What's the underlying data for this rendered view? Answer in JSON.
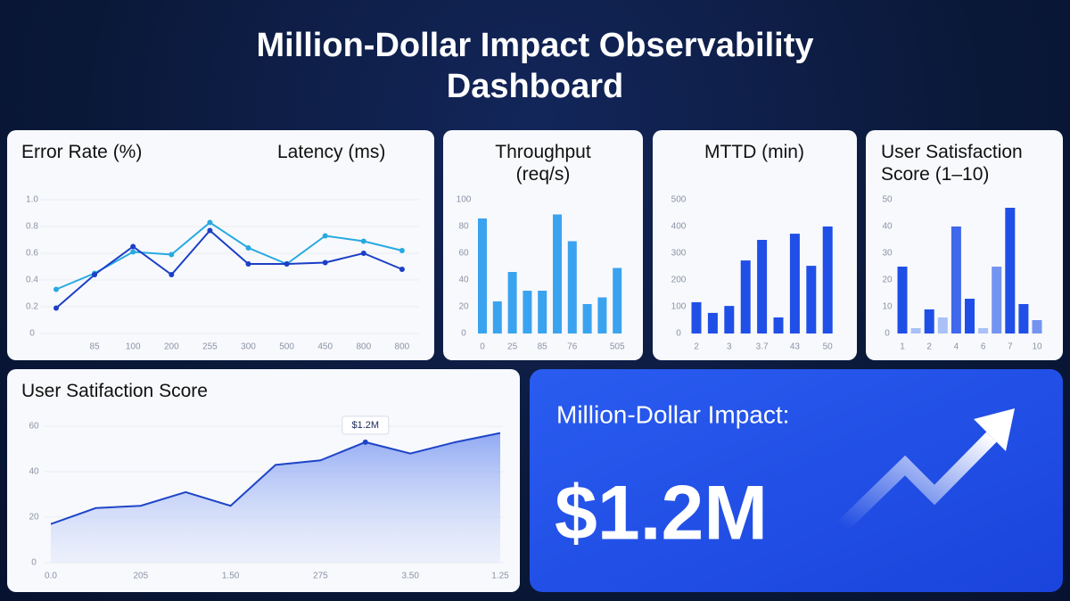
{
  "title": "Million-Dollar Impact Observability Dashboard",
  "chart_data": [
    {
      "type": "line",
      "titles": [
        "Error Rate (%)",
        "Latency (ms)"
      ],
      "categories": [
        null,
        "85",
        "100",
        "200",
        "255",
        "300",
        "500",
        "450",
        "800",
        "800"
      ],
      "series": [
        {
          "color": "#27a9e1",
          "values": [
            0.33,
            0.45,
            0.61,
            0.59,
            0.83,
            0.64,
            0.52,
            0.73,
            0.69,
            0.62
          ]
        },
        {
          "color": "#1b3fc6",
          "values": [
            0.19,
            0.44,
            0.65,
            0.44,
            0.77,
            0.52,
            0.52,
            0.53,
            0.6,
            0.48
          ]
        }
      ],
      "ylim": [
        0,
        1
      ],
      "yticks": [
        0,
        0.2,
        0.4,
        0.6,
        0.8,
        {
          "value": 1,
          "label": "1.0"
        }
      ],
      "grid": true
    },
    {
      "type": "bar",
      "title": "Throughput (req/s)",
      "categories": [
        "0",
        null,
        "25",
        null,
        "85",
        null,
        "76",
        null,
        null,
        "505"
      ],
      "values": [
        86,
        24,
        46,
        32,
        32,
        89,
        69,
        22,
        27,
        49
      ],
      "color": "#3aa3f0",
      "ylim": [
        0,
        100
      ],
      "yticks": [
        0,
        20,
        40,
        60,
        80,
        100
      ],
      "grid": false
    },
    {
      "type": "bar",
      "title": "MTTD (min)",
      "categories": [
        "2",
        null,
        "3",
        null,
        "3.7",
        null,
        "43",
        null,
        "50"
      ],
      "values": [
        117,
        77,
        103,
        273,
        350,
        60,
        373,
        253,
        400
      ],
      "color": "#1f4fe6",
      "ylim": [
        0,
        500
      ],
      "yticks": [
        0,
        100,
        200,
        300,
        400,
        500
      ],
      "grid": false
    },
    {
      "type": "bar",
      "title": "User Satisfaction Score (1–10)",
      "categories": [
        "1",
        null,
        "2",
        null,
        "4",
        null,
        "6",
        null,
        "7",
        null,
        "10"
      ],
      "values": [
        25,
        2,
        9,
        6,
        40,
        13,
        2,
        25,
        47,
        11,
        5
      ],
      "colors": [
        "#1f4fe6",
        "#aac0f7",
        "#1f4fe6",
        "#aac0f7",
        "#3f68ec",
        "#1f4fe6",
        "#aac0f7",
        "#7394f0",
        "#1f4fe6",
        "#1f4fe6",
        "#7394f0"
      ],
      "ylim": [
        0,
        50
      ],
      "yticks": [
        0,
        10,
        20,
        30,
        40,
        50
      ],
      "grid": false
    },
    {
      "type": "area",
      "title": "User Satifaction Score",
      "categories": [
        "0.0",
        null,
        "205",
        null,
        "1.50",
        null,
        "275",
        null,
        "3.50",
        null,
        "1.25"
      ],
      "values": [
        17,
        24,
        25,
        31,
        25,
        43,
        45,
        53,
        48,
        53,
        57
      ],
      "color": "#1f45c8",
      "annotations": [
        "$1.2M"
      ],
      "ylim": [
        0,
        60
      ],
      "yticks": [
        0,
        20,
        40,
        60
      ],
      "grid": true
    }
  ],
  "kpi": {
    "label": "Million-Dollar Impact:",
    "value": "$1.2M"
  }
}
